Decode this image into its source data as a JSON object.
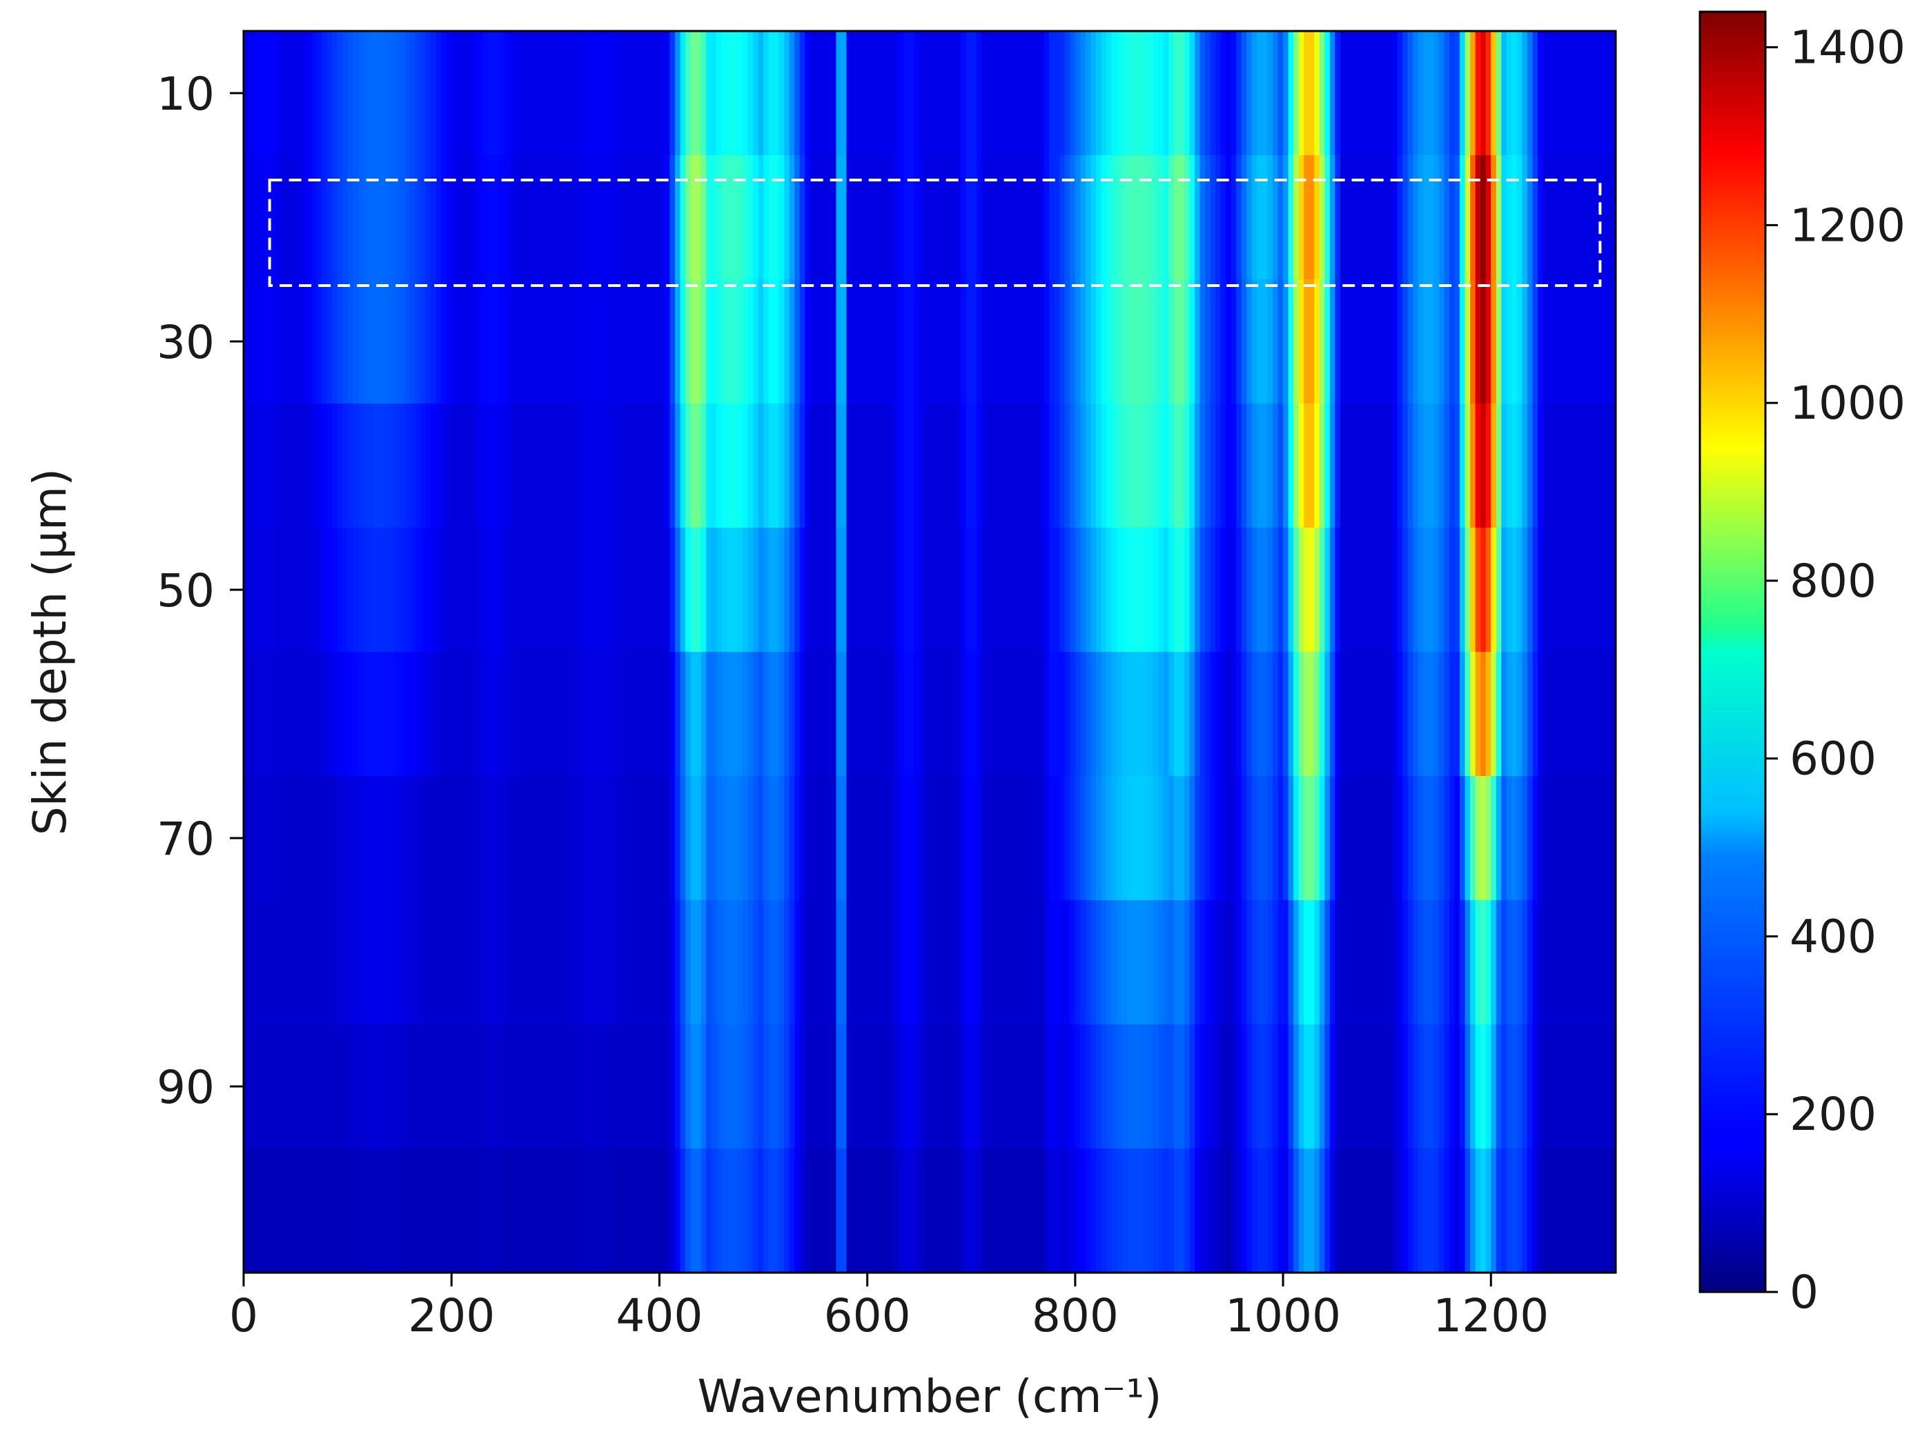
{
  "chart_data": {
    "type": "heatmap",
    "title": "",
    "xlabel": "Wavenumber (cm⁻¹)",
    "ylabel": "Skin depth (μm)",
    "xlim": [
      0,
      1320
    ],
    "ylim": [
      105,
      5
    ],
    "x_ticks": [
      0,
      200,
      400,
      600,
      800,
      1000,
      1200
    ],
    "y_ticks": [
      10,
      30,
      50,
      70,
      90
    ],
    "colorbar": {
      "colormap": "jet",
      "range": [
        0,
        1440
      ],
      "ticks": [
        0,
        200,
        400,
        600,
        800,
        1000,
        1200,
        1400
      ]
    },
    "depths": [
      10,
      20,
      30,
      40,
      50,
      60,
      70,
      80,
      90,
      100
    ],
    "baseline": [
      150,
      140,
      150,
      130,
      130,
      120,
      110,
      110,
      100,
      80
    ],
    "bands": [
      {
        "center": 20,
        "width": 30,
        "values": [
          180,
          170,
          170,
          150,
          140,
          130,
          120,
          110,
          100,
          80
        ]
      },
      {
        "center": 130,
        "width": 60,
        "values": [
          330,
          330,
          330,
          260,
          240,
          200,
          150,
          150,
          120,
          90
        ]
      },
      {
        "center": 240,
        "width": 30,
        "values": [
          200,
          190,
          190,
          170,
          160,
          150,
          130,
          130,
          110,
          90
        ]
      },
      {
        "center": 340,
        "width": 50,
        "values": [
          170,
          160,
          160,
          150,
          150,
          140,
          130,
          130,
          110,
          90
        ]
      },
      {
        "center": 435,
        "width": 16,
        "values": [
          700,
          780,
          760,
          700,
          600,
          460,
          440,
          400,
          380,
          330
        ]
      },
      {
        "center": 470,
        "width": 40,
        "values": [
          560,
          620,
          600,
          560,
          480,
          380,
          360,
          340,
          330,
          300
        ]
      },
      {
        "center": 510,
        "width": 22,
        "values": [
          520,
          560,
          540,
          500,
          420,
          360,
          340,
          320,
          310,
          280
        ]
      },
      {
        "center": 575,
        "width": 4,
        "values": [
          500,
          520,
          520,
          500,
          480,
          450,
          420,
          400,
          380,
          340
        ]
      },
      {
        "center": 640,
        "width": 18,
        "values": [
          200,
          200,
          200,
          200,
          200,
          190,
          180,
          180,
          160,
          130
        ]
      },
      {
        "center": 700,
        "width": 14,
        "values": [
          220,
          220,
          220,
          210,
          200,
          190,
          180,
          180,
          160,
          130
        ]
      },
      {
        "center": 780,
        "width": 12,
        "values": [
          240,
          240,
          230,
          220,
          210,
          200,
          190,
          180,
          170,
          140
        ]
      },
      {
        "center": 860,
        "width": 55,
        "values": [
          580,
          640,
          640,
          620,
          560,
          460,
          470,
          380,
          330,
          280
        ]
      },
      {
        "center": 900,
        "width": 18,
        "values": [
          620,
          700,
          680,
          640,
          580,
          480,
          430,
          360,
          320,
          280
        ]
      },
      {
        "center": 980,
        "width": 22,
        "values": [
          420,
          460,
          440,
          400,
          360,
          320,
          300,
          280,
          260,
          240
        ]
      },
      {
        "center": 1025,
        "width": 16,
        "values": [
          980,
          1070,
          1040,
          1000,
          880,
          780,
          700,
          550,
          500,
          420
        ]
      },
      {
        "center": 1140,
        "width": 25,
        "values": [
          400,
          420,
          420,
          400,
          380,
          350,
          320,
          300,
          280,
          260
        ]
      },
      {
        "center": 1192,
        "width": 14,
        "values": [
          1300,
          1420,
          1400,
          1340,
          1220,
          1080,
          800,
          620,
          560,
          480
        ]
      },
      {
        "center": 1222,
        "width": 18,
        "values": [
          500,
          520,
          520,
          500,
          460,
          420,
          360,
          320,
          300,
          280
        ]
      }
    ],
    "highlight_box": {
      "x": [
        25,
        1305
      ],
      "y": [
        17,
        25.5
      ],
      "style": "white dashed"
    }
  }
}
